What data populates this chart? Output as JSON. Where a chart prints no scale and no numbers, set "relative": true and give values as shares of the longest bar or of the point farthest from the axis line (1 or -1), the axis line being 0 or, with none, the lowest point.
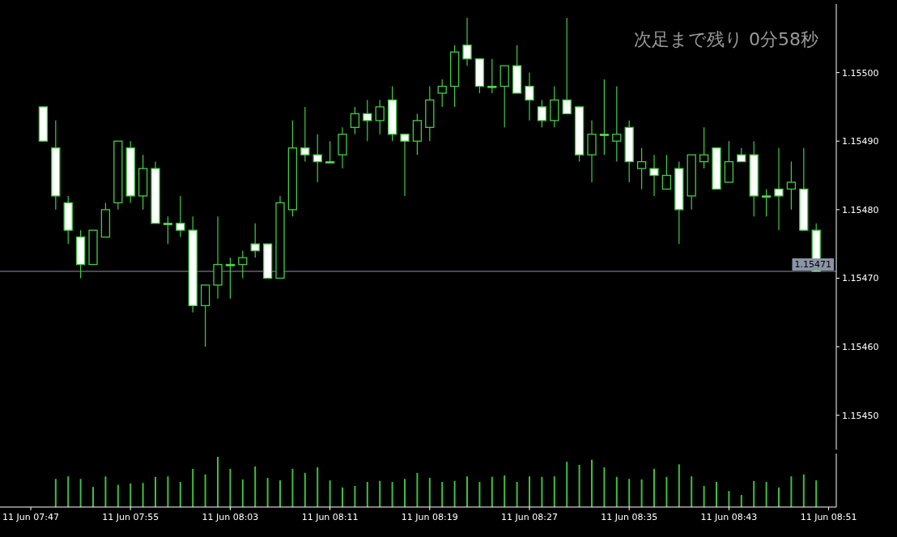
{
  "chart_data": [
    {
      "type": "candlestick",
      "annotations": [
        "次足まで残り 0分58秒"
      ],
      "categories": [
        null,
        null,
        null,
        null,
        null,
        null,
        null,
        null,
        null,
        null,
        null,
        null,
        null,
        null,
        null,
        null,
        null,
        null,
        null,
        null,
        null,
        null,
        null,
        null,
        null,
        null,
        null,
        null,
        null,
        null,
        null,
        null,
        null,
        null,
        null,
        null,
        null,
        null,
        null,
        null,
        null,
        null,
        null,
        null,
        null,
        null,
        null,
        null,
        null,
        null,
        null,
        null,
        null,
        null,
        null,
        null,
        null,
        null,
        null,
        null,
        null,
        null,
        null,
        null,
        null
      ],
      "tick_labels": "y",
      "ylim": [
        1.15445,
        1.1551
      ],
      "yticks": [
        {
          "value": 1.1545,
          "label": "1.15450"
        },
        {
          "value": 1.1546,
          "label": "1.15460"
        },
        {
          "value": 1.1547,
          "label": "1.15470"
        },
        {
          "value": 1.1548,
          "label": "1.15480"
        },
        {
          "value": 1.1549,
          "label": "1.15490"
        },
        {
          "value": 1.155,
          "label": "1.15500"
        }
      ],
      "ref_lines": [
        {
          "axis": "y",
          "value": 1.15471,
          "label": "1.15471",
          "color": "#8a94a6"
        }
      ],
      "series": [
        {
          "color": "#44cc44",
          "ohlc": [
            null,
            [
              1.15495,
              1.15495,
              1.1549,
              1.1549
            ],
            [
              1.15489,
              1.15493,
              1.1548,
              1.15482
            ],
            [
              1.15481,
              1.15482,
              1.15475,
              1.15477
            ],
            [
              1.15476,
              1.15477,
              1.1547,
              1.15472
            ],
            [
              1.15472,
              1.15477,
              1.15472,
              1.15477
            ],
            [
              1.15476,
              1.15481,
              1.15476,
              1.1548
            ],
            [
              1.15481,
              1.1549,
              1.1548,
              1.1549
            ],
            [
              1.15489,
              1.1549,
              1.15481,
              1.15482
            ],
            [
              1.15482,
              1.15488,
              1.1548,
              1.15486
            ],
            [
              1.15486,
              1.15487,
              1.15478,
              1.15478
            ],
            [
              1.15478,
              1.15479,
              1.15475,
              1.15478
            ],
            [
              1.15478,
              1.15482,
              1.15476,
              1.15477
            ],
            [
              1.15477,
              1.15479,
              1.15465,
              1.15466
            ],
            [
              1.15466,
              1.15469,
              1.1546,
              1.15469
            ],
            [
              1.15469,
              1.15479,
              1.15467,
              1.15472
            ],
            [
              1.15472,
              1.15473,
              1.15467,
              1.15472
            ],
            [
              1.15472,
              1.15474,
              1.1547,
              1.15473
            ],
            [
              1.15475,
              1.15478,
              1.15473,
              1.15474
            ],
            [
              1.15475,
              1.15475,
              1.1547,
              1.1547
            ],
            [
              1.1547,
              1.15482,
              1.1547,
              1.15481
            ],
            [
              1.1548,
              1.15493,
              1.15479,
              1.15489
            ],
            [
              1.15489,
              1.15495,
              1.15487,
              1.15488
            ],
            [
              1.15488,
              1.15491,
              1.15484,
              1.15487
            ],
            [
              1.15487,
              1.1549,
              1.15487,
              1.15487
            ],
            [
              1.15488,
              1.15492,
              1.15486,
              1.15491
            ],
            [
              1.15492,
              1.15495,
              1.15491,
              1.15494
            ],
            [
              1.15494,
              1.15496,
              1.1549,
              1.15493
            ],
            [
              1.15493,
              1.15496,
              1.15491,
              1.15495
            ],
            [
              1.15496,
              1.15498,
              1.1549,
              1.15491
            ],
            [
              1.15491,
              1.15491,
              1.15482,
              1.1549
            ],
            [
              1.1549,
              1.15494,
              1.15488,
              1.15493
            ],
            [
              1.15492,
              1.15498,
              1.1549,
              1.15496
            ],
            [
              1.15497,
              1.15499,
              1.15495,
              1.15498
            ],
            [
              1.15498,
              1.15504,
              1.15495,
              1.15503
            ],
            [
              1.15504,
              1.15508,
              1.15501,
              1.15502
            ],
            [
              1.15502,
              1.15502,
              1.15497,
              1.15498
            ],
            [
              1.15498,
              1.15502,
              1.15497,
              1.15498
            ],
            [
              1.15498,
              1.15501,
              1.15492,
              1.15501
            ],
            [
              1.15501,
              1.15504,
              1.15497,
              1.15497
            ],
            [
              1.15498,
              1.155,
              1.15493,
              1.15496
            ],
            [
              1.15495,
              1.15496,
              1.15492,
              1.15493
            ],
            [
              1.15493,
              1.15498,
              1.15492,
              1.15496
            ],
            [
              1.15496,
              1.15508,
              1.15494,
              1.15494
            ],
            [
              1.15495,
              1.15495,
              1.15487,
              1.15488
            ],
            [
              1.15488,
              1.15493,
              1.15484,
              1.15491
            ],
            [
              1.15491,
              1.15499,
              1.15488,
              1.15491
            ],
            [
              1.1549,
              1.15498,
              1.15487,
              1.15491
            ],
            [
              1.15492,
              1.15493,
              1.15484,
              1.15487
            ],
            [
              1.15486,
              1.15489,
              1.15483,
              1.15487
            ],
            [
              1.15486,
              1.15488,
              1.15482,
              1.15485
            ],
            [
              1.15483,
              1.15488,
              1.15483,
              1.15485
            ],
            [
              1.15486,
              1.15487,
              1.15475,
              1.1548
            ],
            [
              1.15482,
              1.15488,
              1.1548,
              1.15488
            ],
            [
              1.15487,
              1.15492,
              1.15486,
              1.15488
            ],
            [
              1.15489,
              1.15489,
              1.15483,
              1.15483
            ],
            [
              1.15484,
              1.1549,
              1.15484,
              1.15487
            ],
            [
              1.15488,
              1.15489,
              1.15487,
              1.15487
            ],
            [
              1.15488,
              1.1549,
              1.15479,
              1.15482
            ],
            [
              1.15482,
              1.15483,
              1.15479,
              1.15482
            ],
            [
              1.15483,
              1.15489,
              1.15477,
              1.15482
            ],
            [
              1.15483,
              1.15487,
              1.1548,
              1.15484
            ],
            [
              1.15483,
              1.15489,
              1.15477,
              1.15477
            ],
            [
              1.15477,
              1.15478,
              1.15471,
              1.15471
            ],
            null
          ]
        }
      ]
    },
    {
      "type": "bar",
      "relative": true,
      "tick_labels": "x",
      "color": "#3fbf3f",
      "categories": [
        "11 Jun 07:47",
        null,
        null,
        null,
        null,
        null,
        null,
        null,
        "11 Jun 07:55",
        null,
        null,
        null,
        null,
        null,
        null,
        null,
        "11 Jun 08:03",
        null,
        null,
        null,
        null,
        null,
        null,
        null,
        "11 Jun 08:11",
        null,
        null,
        null,
        null,
        null,
        null,
        null,
        "11 Jun 08:19",
        null,
        null,
        null,
        null,
        null,
        null,
        null,
        "11 Jun 08:27",
        null,
        null,
        null,
        null,
        null,
        null,
        null,
        "11 Jun 08:35",
        null,
        null,
        null,
        null,
        null,
        null,
        null,
        "11 Jun 08:43",
        null,
        null,
        null,
        null,
        null,
        null,
        null,
        "11 Jun 08:51"
      ],
      "values": [
        null,
        null,
        0.56,
        0.61,
        0.56,
        0.4,
        0.61,
        0.44,
        0.47,
        0.48,
        0.6,
        0.61,
        0.5,
        0.76,
        0.65,
        1,
        0.76,
        0.55,
        0.81,
        0.58,
        0.53,
        0.76,
        0.68,
        0.79,
        0.53,
        0.39,
        0.42,
        0.5,
        0.52,
        0.5,
        0.56,
        0.68,
        0.58,
        0.5,
        0.52,
        0.61,
        0.5,
        0.6,
        0.63,
        0.5,
        0.61,
        0.6,
        0.61,
        0.9,
        0.84,
        0.94,
        0.79,
        0.6,
        0.56,
        0.55,
        0.76,
        0.6,
        0.85,
        0.61,
        0.42,
        0.5,
        0.32,
        0.24,
        0.52,
        0.5,
        0.39,
        0.61,
        0.65,
        0.53,
        null
      ]
    }
  ]
}
